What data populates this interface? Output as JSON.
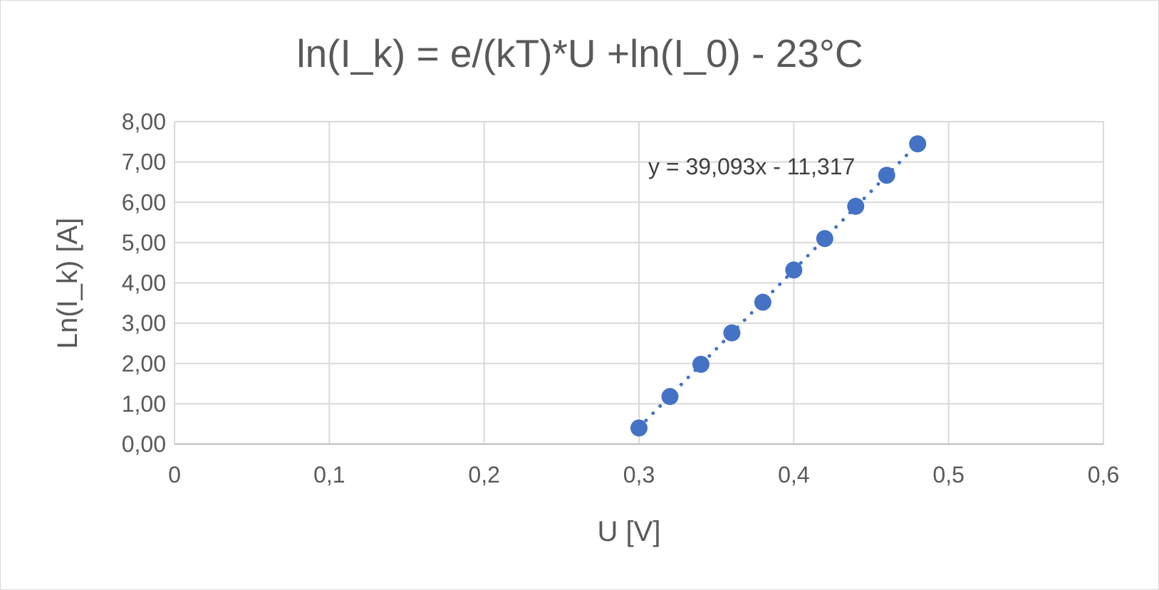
{
  "chart_data": {
    "type": "scatter",
    "title": "ln(I_k) =  e/(kT)*U +ln(I_0) - 23°C",
    "xlabel": "U [V]",
    "ylabel": "Ln(I_k) [A]",
    "xlim": [
      0,
      0.6
    ],
    "ylim": [
      0,
      8
    ],
    "x_ticks": [
      "0",
      "0,1",
      "0,2",
      "0,3",
      "0,4",
      "0,5",
      "0,6"
    ],
    "y_ticks": [
      "0,00",
      "1,00",
      "2,00",
      "3,00",
      "4,00",
      "5,00",
      "6,00",
      "7,00",
      "8,00"
    ],
    "grid": true,
    "legend": "none",
    "series": [
      {
        "x": [
          0.3,
          0.32,
          0.34,
          0.36,
          0.38,
          0.4,
          0.42,
          0.44,
          0.46,
          0.48
        ],
        "y": [
          0.4,
          1.18,
          1.98,
          2.76,
          3.52,
          4.32,
          5.1,
          5.9,
          6.67,
          7.45
        ]
      }
    ],
    "trendline": {
      "type": "linear",
      "slope": 39.093,
      "intercept": -11.317,
      "x_range": [
        0.3,
        0.48
      ],
      "equation": "y = 39,093x - 11,317"
    },
    "colors": {
      "points": "#4472c4",
      "trendline": "#4472c4",
      "grid": "#d9d9d9",
      "text": "#595959"
    }
  }
}
